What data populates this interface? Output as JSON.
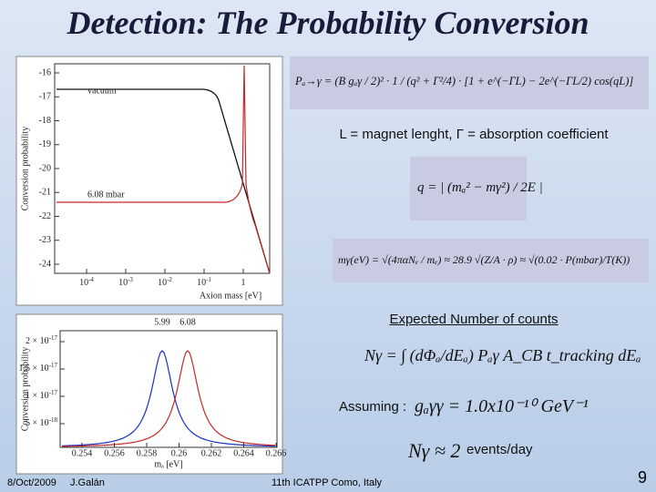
{
  "header": {
    "title": "Detection: The Probability Conversion"
  },
  "top_plot": {
    "y_label": "Conversion probability",
    "x_label": "Axion mass [eV]",
    "y_ticks": [
      "-16",
      "-17",
      "-18",
      "-19",
      "-20",
      "-21",
      "-22",
      "-23",
      "-24"
    ],
    "x_ticks": [
      {
        "base": "10",
        "exp": "-4"
      },
      {
        "base": "10",
        "exp": "-3"
      },
      {
        "base": "10",
        "exp": "-2"
      },
      {
        "base": "10",
        "exp": "-1"
      },
      {
        "base": "1"
      }
    ],
    "curve_labels": [
      "vacuum",
      "6.08 mbar"
    ]
  },
  "bottom_plot": {
    "y_label": "Conversion probability",
    "x_label": "mₐ [eV]",
    "top_labels": [
      "5.99",
      "6.08"
    ],
    "y_ticks": [
      {
        "base": "2 × 10",
        "exp": "-17"
      },
      {
        "base": "1.5 × 10",
        "exp": "-17"
      },
      {
        "base": "1 × 10",
        "exp": "-17"
      },
      {
        "base": "5 × 10",
        "exp": "-18"
      }
    ],
    "x_ticks": [
      "0.254",
      "0.256",
      "0.258",
      "0.26",
      "0.262",
      "0.264",
      "0.266"
    ]
  },
  "formulas": {
    "probability": "Pₐ→γ = (B gₐγ / 2)² · 1 / (q² + Γ²/4) · [1 + e^(−ΓL) − 2e^(−ΓL/2) cos(qL)]",
    "legend": "L = magnet lenght, Γ = absorption coefficient",
    "q": "q = | (mₐ² − mγ²) / 2E |",
    "photon_mass": "mγ(eV) = √(4παNₑ / mₑ) ≈ 28.9 √(Z/A · ρ) ≈ √(0.02 · P(mbar)/T(K))",
    "counts_title": "Expected Number of counts",
    "counts": "Nγ = ∫ (dΦₐ/dEₐ) Pₐγ A_CB t_tracking dEₐ",
    "assuming": "Assuming :",
    "coupling": "gₐγγ = 1.0x10⁻¹⁰ GeV⁻¹",
    "result": "Nγ ≈ 2",
    "result_unit": "events/day"
  },
  "footer": {
    "date": "8/Oct/2009",
    "author": "J.Galán",
    "event": "11th ICATPP Como, Italy",
    "page": "9"
  }
}
